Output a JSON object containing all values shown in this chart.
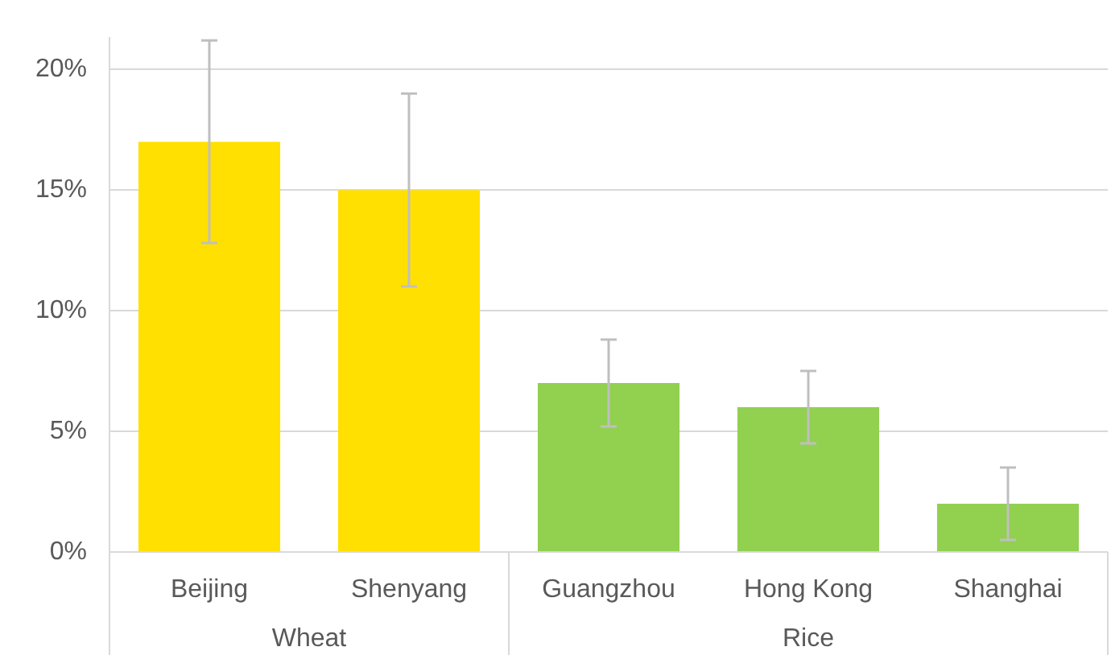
{
  "chart_data": {
    "type": "bar",
    "categories": [
      "Beijing",
      "Shenyang",
      "Guangzhou",
      "Hong Kong",
      "Shanghai"
    ],
    "stacked": true,
    "series": [
      {
        "name": "Wheat",
        "color": "#ffe000",
        "values": [
          17,
          15,
          null,
          null,
          null
        ],
        "errors": [
          4.2,
          4,
          null,
          null,
          null
        ]
      },
      {
        "name": "Rice",
        "color": "#92d050",
        "values": [
          null,
          null,
          7,
          6,
          2
        ],
        "errors": [
          null,
          null,
          1.8,
          1.5,
          1.5
        ]
      }
    ],
    "ylim": [
      0,
      21.3
    ],
    "yticks": [
      {
        "value": 0,
        "label": "0%"
      },
      {
        "value": 5,
        "label": "5%"
      },
      {
        "value": 10,
        "label": "10%"
      },
      {
        "value": 15,
        "label": "15%"
      },
      {
        "value": 20,
        "label": "20%"
      }
    ],
    "grid": "y",
    "legend": false
  }
}
